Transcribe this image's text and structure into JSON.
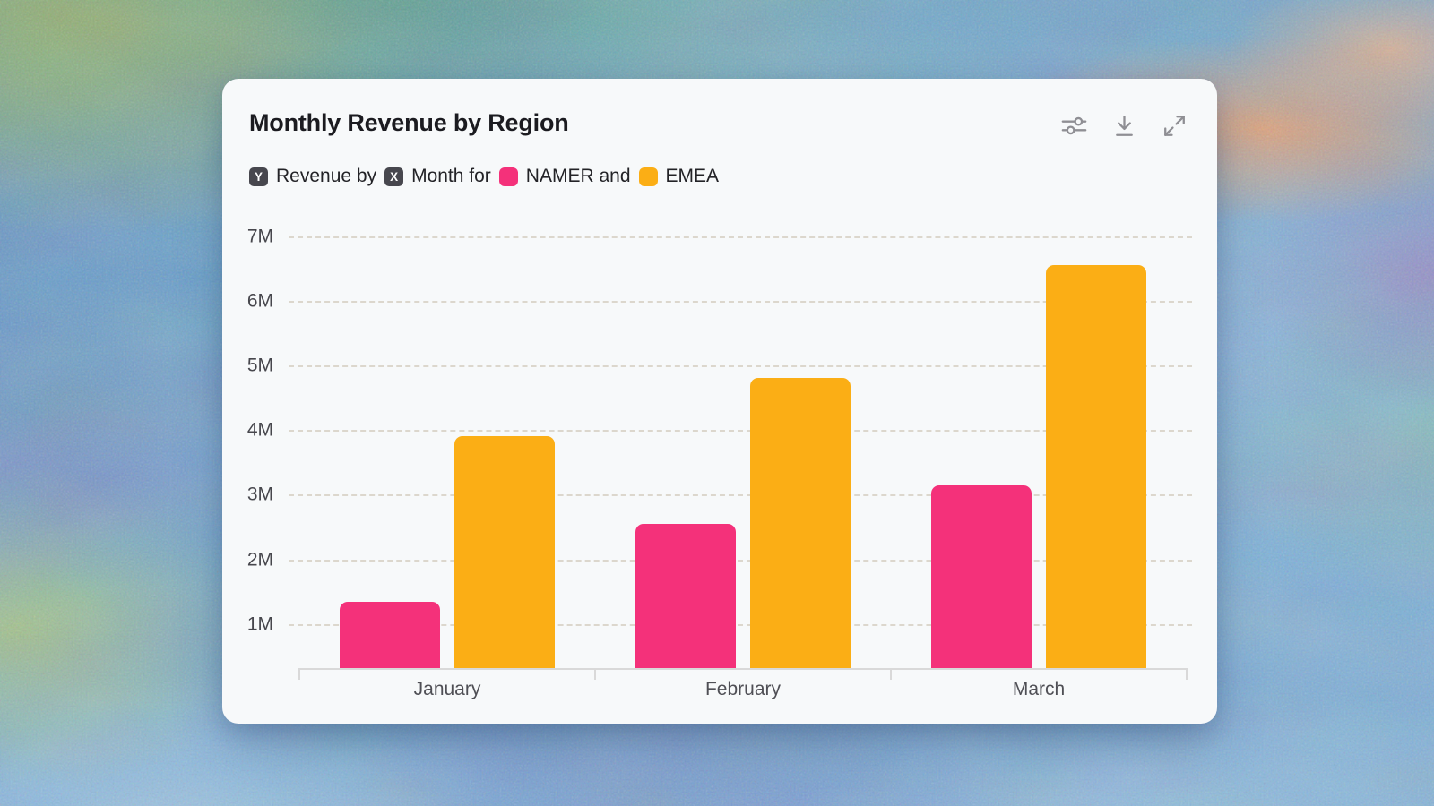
{
  "card": {
    "title": "Monthly Revenue by Region",
    "subtitle": {
      "y_badge": "Y",
      "y_text": "Revenue by",
      "x_badge": "X",
      "x_text": "Month for",
      "series_a_text": "NAMER and",
      "series_b_text": "EMEA"
    }
  },
  "chart_data": {
    "type": "bar",
    "title": "Monthly Revenue by Region",
    "x_field": "Month",
    "y_field": "Revenue",
    "categories": [
      "January",
      "February",
      "March"
    ],
    "series": [
      {
        "name": "NAMER",
        "color": "#f4317a",
        "values": [
          1.35,
          2.55,
          3.15
        ]
      },
      {
        "name": "EMEA",
        "color": "#fbae15",
        "values": [
          3.9,
          4.8,
          6.55
        ]
      }
    ],
    "unit": "M",
    "y_ticks": [
      {
        "label": "1M",
        "value": 1
      },
      {
        "label": "2M",
        "value": 2
      },
      {
        "label": "3M",
        "value": 3
      },
      {
        "label": "4M",
        "value": 4
      },
      {
        "label": "5M",
        "value": 5
      },
      {
        "label": "6M",
        "value": 6
      },
      {
        "label": "7M",
        "value": 7
      }
    ],
    "ylim": [
      0,
      7.3
    ],
    "grid": "horizontal-dashed",
    "legend": "inline-subtitle"
  },
  "colors": {
    "namer": "#f4317a",
    "emea": "#fbae15",
    "card_bg": "#f7f9fa",
    "title_text": "#1b1b20",
    "axis_text": "#47474d",
    "gridline": "#dcd7cd",
    "axis_line": "#d9d9d9",
    "icon": "#8f8f94",
    "badge_bg": "#47474e"
  }
}
